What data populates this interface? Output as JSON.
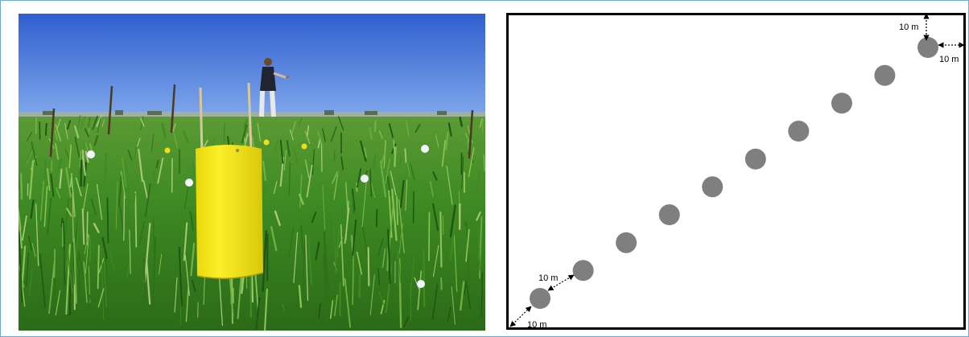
{
  "photo": {
    "trap_color": "#f2e40c",
    "sky_color": "#3f6fd6",
    "grass_color": "#3e8a23"
  },
  "diagram": {
    "point_color": "#7f7f7f",
    "point_count": 10,
    "spacing_label_top": "10 m",
    "spacing_label_right": "10 m",
    "spacing_label_between": "10 m",
    "spacing_label_bottom": "10 m"
  }
}
